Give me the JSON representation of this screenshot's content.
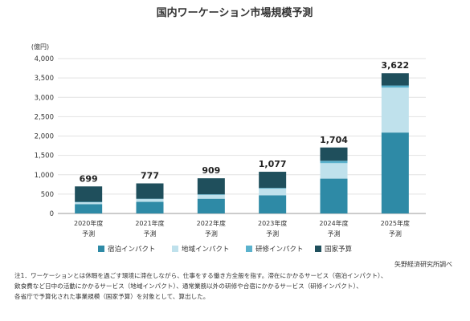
{
  "chart_data": {
    "type": "bar",
    "stacked": true,
    "title": "国内ワーケーション市場規模予測",
    "unit_label": "(億円)",
    "ylim": [
      0,
      4000
    ],
    "yticks": [
      "0",
      "500",
      "1,000",
      "1,500",
      "2,000",
      "2,500",
      "3,000",
      "3,500",
      "4,000"
    ],
    "ytick_values": [
      0,
      500,
      1000,
      1500,
      2000,
      2500,
      3000,
      3500,
      4000
    ],
    "categories": [
      [
        "2020年度",
        "予測"
      ],
      [
        "2021年度",
        "予測"
      ],
      [
        "2022年度",
        "予測"
      ],
      [
        "2023年度",
        "予測"
      ],
      [
        "2024年度",
        "予測"
      ],
      [
        "2025年度",
        "予測"
      ]
    ],
    "totals": [
      "699",
      "777",
      "909",
      "1,077",
      "1,704",
      "3,622"
    ],
    "series": [
      {
        "name": "宿泊インパクト",
        "color": "#2e8aa6",
        "values": [
          240,
          300,
          380,
          470,
          900,
          2090
        ]
      },
      {
        "name": "地域インパクト",
        "color": "#bfe1ec",
        "values": [
          50,
          70,
          100,
          170,
          400,
          1160
        ]
      },
      {
        "name": "研修インパクト",
        "color": "#5bb2cd",
        "values": [
          10,
          10,
          15,
          20,
          60,
          55
        ]
      },
      {
        "name": "国家予算",
        "color": "#1f4f5c",
        "values": [
          399,
          397,
          414,
          417,
          344,
          317
        ]
      }
    ],
    "legend_position": "bottom"
  },
  "source": "矢野経済研究所調べ",
  "notes": [
    "注1．ワーケーションとは休暇を過ごす環境に滞在しながら、仕事をする働き方全般を指す。滞在にかかるサービス（宿泊インパクト）、",
    "飲食費など日中の活動にかかるサービス（地域インパクト）、通常業務以外の研修や合宿にかかるサービス（研修インパクト）、",
    "各省庁で予算化された事業規模（国家予算）を対象として、算出した。"
  ]
}
